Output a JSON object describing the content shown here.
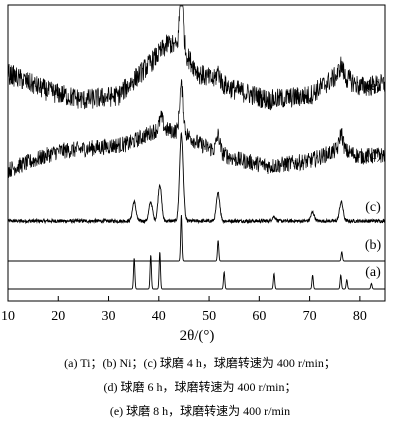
{
  "chart_data": {
    "type": "line",
    "title": "",
    "xlabel": "2θ/(°)",
    "ylabel": "",
    "xlim": [
      10,
      85
    ],
    "xticks": [
      10,
      20,
      30,
      40,
      50,
      60,
      70,
      80
    ],
    "grid": false,
    "series": [
      {
        "label": "(a)",
        "noise": 0,
        "background": [],
        "peaks": [
          [
            35.1,
            1.0
          ],
          [
            38.4,
            1.1
          ],
          [
            40.2,
            1.2
          ],
          [
            53.0,
            0.55
          ],
          [
            62.9,
            0.5
          ],
          [
            70.6,
            0.45
          ],
          [
            76.2,
            0.45
          ],
          [
            77.4,
            0.3
          ],
          [
            82.3,
            0.18
          ]
        ]
      },
      {
        "label": "(b)",
        "noise": 0,
        "background": [],
        "peaks": [
          [
            44.5,
            1.0
          ],
          [
            51.8,
            0.45
          ],
          [
            76.4,
            0.2
          ]
        ]
      },
      {
        "label": "(c)",
        "noise": 0.02,
        "background": [
          [
            10,
            0.0
          ],
          [
            85,
            0.0
          ]
        ],
        "peaks": [
          [
            35.1,
            0.22
          ],
          [
            38.4,
            0.22
          ],
          [
            40.2,
            0.42
          ],
          [
            44.5,
            1.0
          ],
          [
            51.8,
            0.32
          ],
          [
            62.9,
            0.05
          ],
          [
            70.6,
            0.1
          ],
          [
            76.3,
            0.22
          ]
        ]
      },
      {
        "label": "(d)",
        "noise": 0.11,
        "background": [
          [
            10,
            0.0
          ],
          [
            20,
            0.25
          ],
          [
            28,
            0.3
          ],
          [
            34,
            0.35
          ],
          [
            40,
            0.55
          ],
          [
            45,
            0.5
          ],
          [
            48,
            0.35
          ],
          [
            55,
            0.15
          ],
          [
            62,
            0.05
          ],
          [
            70,
            0.12
          ],
          [
            76,
            0.28
          ],
          [
            80,
            0.18
          ],
          [
            85,
            0.2
          ]
        ],
        "peaks": [
          [
            40.5,
            0.15
          ],
          [
            44.5,
            0.62
          ],
          [
            51.8,
            0.22
          ],
          [
            76.3,
            0.22
          ]
        ]
      },
      {
        "label": "(e)",
        "noise": 0.12,
        "background": [
          [
            10,
            0.3
          ],
          [
            18,
            0.1
          ],
          [
            25,
            0.0
          ],
          [
            32,
            0.05
          ],
          [
            38,
            0.4
          ],
          [
            42,
            0.65
          ],
          [
            45,
            0.55
          ],
          [
            48,
            0.3
          ],
          [
            55,
            0.12
          ],
          [
            62,
            0.0
          ],
          [
            70,
            0.05
          ],
          [
            76,
            0.3
          ],
          [
            80,
            0.15
          ],
          [
            85,
            0.18
          ]
        ],
        "peaks": [
          [
            44.5,
            0.7
          ],
          [
            51.8,
            0.12
          ],
          [
            76.3,
            0.1
          ]
        ]
      }
    ]
  },
  "caption": {
    "line1": "(a) Ti；(b) Ni；(c)  球磨 4 h，球磨转速为 400 r/min；",
    "line2": "(d)  球磨 6 h，球磨转速为 400 r/min；",
    "line3": "(e)  球磨 8 h，球磨转速为 400 r/min"
  }
}
